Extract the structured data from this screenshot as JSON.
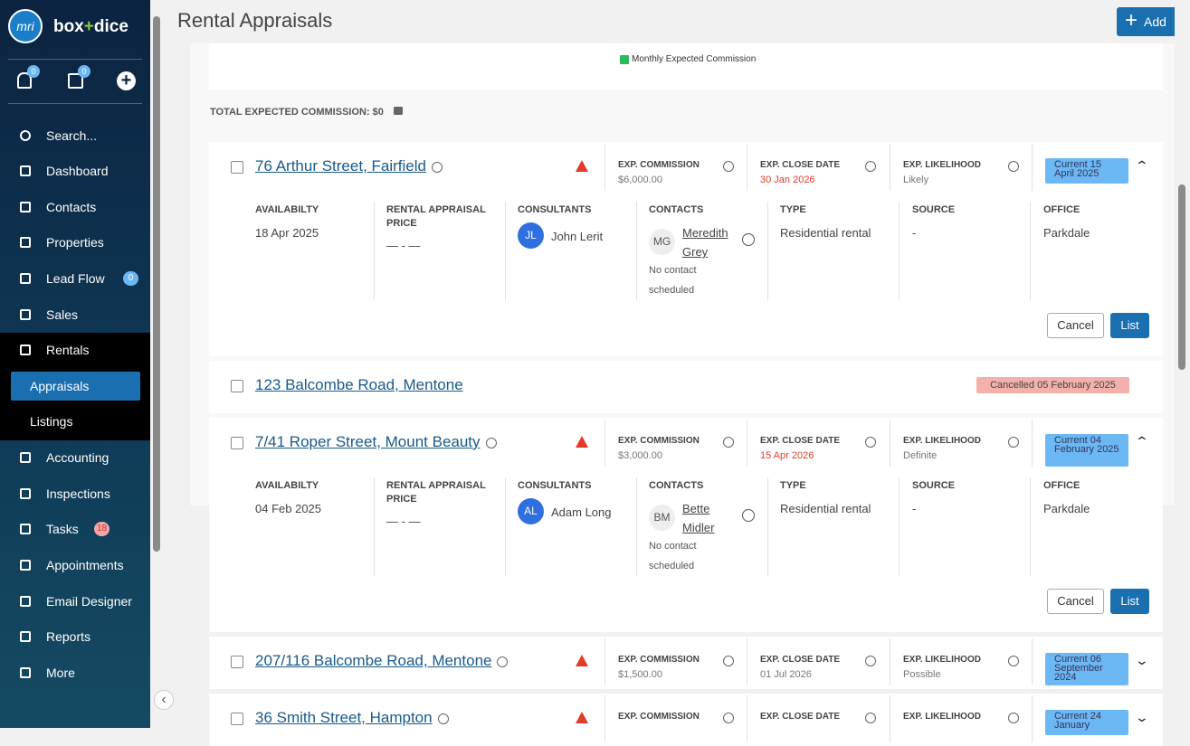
{
  "sidebar": {
    "logo": "mri",
    "brand_left": "box",
    "brand_plus": "+",
    "brand_right": "dice",
    "notifications": 0,
    "tasks": 0,
    "nav": [
      {
        "label": "Search..."
      },
      {
        "label": "Dashboard"
      },
      {
        "label": "Contacts"
      },
      {
        "label": "Properties"
      },
      {
        "label": "Lead Flow",
        "badge": 0
      },
      {
        "label": "Sales"
      },
      {
        "label": "Rentals",
        "section": true
      },
      {
        "label": "Appraisals",
        "active": true,
        "sub": true
      },
      {
        "label": "Listings",
        "sub": true
      },
      {
        "label": "Accounting"
      },
      {
        "label": "Inspections"
      },
      {
        "label": "Tasks",
        "badge": 18,
        "badge_alert": true
      },
      {
        "label": "Appointments"
      },
      {
        "label": "Email Designer"
      },
      {
        "label": "Reports"
      },
      {
        "label": "More"
      }
    ]
  },
  "header": {
    "title": "Rental Appraisals",
    "add": "Add"
  },
  "legend": "Monthly Expected Commission",
  "total": "TOTAL EXPECTED COMMISSION: $0",
  "labels": {
    "commission": "EXP. COMMISSION",
    "close_date": "EXP. CLOSE DATE",
    "likelihood": "EXP. LIKELIHOOD",
    "availability": "AVAILABILTY",
    "price": "RENTAL APPRAISAL PRICE",
    "consultants": "CONSULTANTS",
    "contacts": "CONTACTS",
    "type": "TYPE",
    "source": "SOURCE",
    "office": "OFFICE",
    "cancel": "Cancel",
    "list": "List"
  },
  "appraisals": [
    {
      "address": "76 Arthur Street, Fairfield",
      "status": "Current 15 April 2025",
      "status_kind": "current",
      "commission": "$6,000.00",
      "close_date": "30 Jan 2026",
      "overdue": true,
      "likelihood": "Likely",
      "expanded": true,
      "details": {
        "availability": "18 Apr 2025",
        "price": "— - —",
        "consultant_initials": "JL",
        "consultant": "John Lerit",
        "contact_initials": "MG",
        "contact_first": "Meredith",
        "contact_last": "Grey",
        "note_1": "No contact",
        "note_2": "scheduled",
        "type": "Residential rental",
        "source": "-",
        "office": "Parkdale"
      }
    },
    {
      "address": "123 Balcombe Road, Mentone",
      "status": "Cancelled 05 February 2025",
      "status_kind": "cancelled"
    },
    {
      "address": "7/41 Roper Street, Mount Beauty",
      "status": "Current 04 February 2025",
      "status_kind": "current",
      "commission": "$3,000.00",
      "close_date": "15 Apr 2026",
      "overdue": true,
      "likelihood": "Definite",
      "expanded": true,
      "details": {
        "availability": "04 Feb 2025",
        "price": "— - —",
        "consultant_initials": "AL",
        "consultant": "Adam Long",
        "contact_initials": "BM",
        "contact_first": "Bette",
        "contact_last": "Midler",
        "note_1": "No contact",
        "note_2": "scheduled",
        "type": "Residential rental",
        "source": "-",
        "office": "Parkdale"
      }
    },
    {
      "address": "207/116 Balcombe Road, Mentone",
      "status": "Current 06 September 2024",
      "status_kind": "current",
      "commission": "$1,500.00",
      "close_date": "01 Jul 2026",
      "overdue": false,
      "likelihood": "Possible",
      "expanded": false
    },
    {
      "address": "36 Smith Street, Hampton",
      "status": "Current 24 January",
      "status_kind": "current",
      "expanded": false,
      "columns": true
    }
  ]
}
